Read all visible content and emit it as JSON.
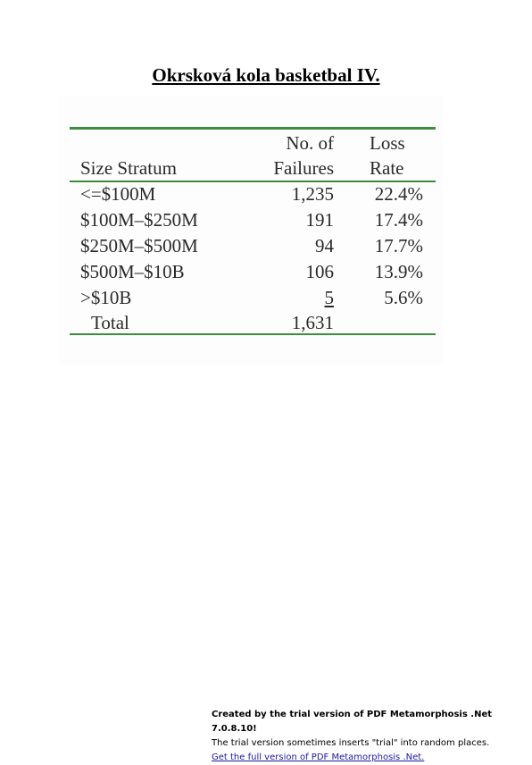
{
  "title": "Okrsková kola basketbal IV.",
  "table": {
    "header": {
      "col1": "Size Stratum",
      "col2_line1": "No. of",
      "col2_line2": "Failures",
      "col3_line1": "Loss",
      "col3_line2": "Rate"
    },
    "rows": [
      {
        "stratum": "<=$100M",
        "failures": "1,235",
        "loss_rate": "22.4%"
      },
      {
        "stratum": "$100M–$250M",
        "failures": "191",
        "loss_rate": "17.4%"
      },
      {
        "stratum": "$250M–$500M",
        "failures": "94",
        "loss_rate": "17.7%"
      },
      {
        "stratum": "$500M–$10B",
        "failures": "106",
        "loss_rate": "13.9%"
      },
      {
        "stratum": ">$10B",
        "failures": "5",
        "loss_rate": "5.6%"
      }
    ],
    "total": {
      "label": "Total",
      "failures": "1,631",
      "loss_rate": ""
    },
    "rule_color": "#3d8b3d"
  },
  "footer": {
    "line1": "Created by the trial version of PDF Metamorphosis .Net 7.0.8.10!",
    "line2": "The trial version sometimes inserts \"trial\" into random places.",
    "link": "Get the full version of PDF Metamorphosis .Net."
  }
}
